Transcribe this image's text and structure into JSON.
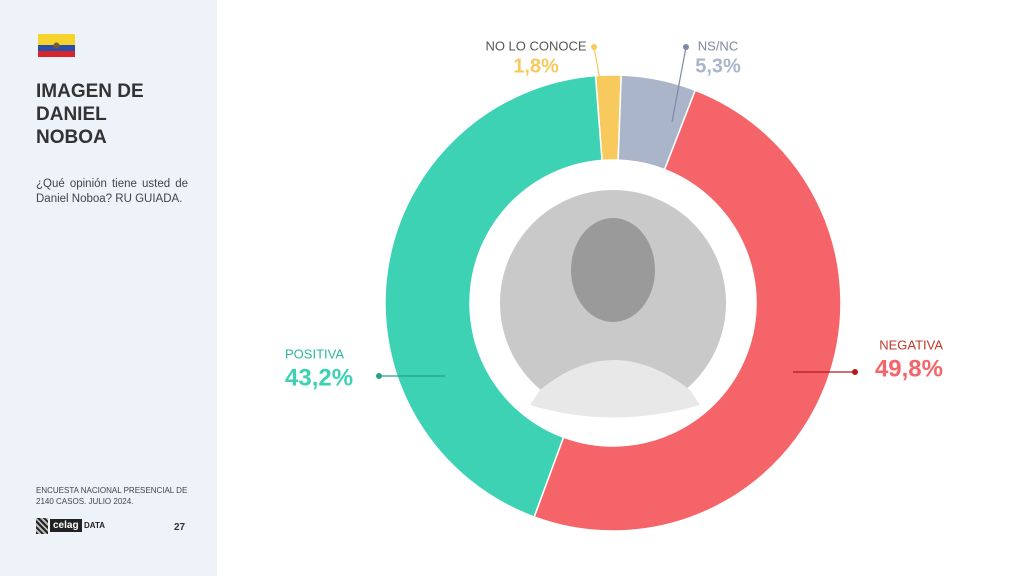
{
  "sidebar": {
    "title": "IMAGEN DE DANIEL NOBOA",
    "question": "¿Qué opinión tiene usted de Daniel Noboa? RU GUIADA.",
    "note": "ENCUESTA NACIONAL PRESENCIAL DE 2140 CASOS. JULIO 2024.",
    "brand": "celag",
    "brand_sub": "DATA",
    "page": "27"
  },
  "chart_data": {
    "type": "donut",
    "categories": [
      "NO LO CONOCE",
      "NS/NC",
      "NEGATIVA",
      "POSITIVA"
    ],
    "values": [
      1.8,
      5.3,
      49.8,
      43.2
    ],
    "value_labels": [
      "1,8%",
      "5,3%",
      "49,8%",
      "43,2%"
    ],
    "colors": [
      "#f8c95c",
      "#aab5c9",
      "#f56468",
      "#3ed2b5"
    ]
  }
}
